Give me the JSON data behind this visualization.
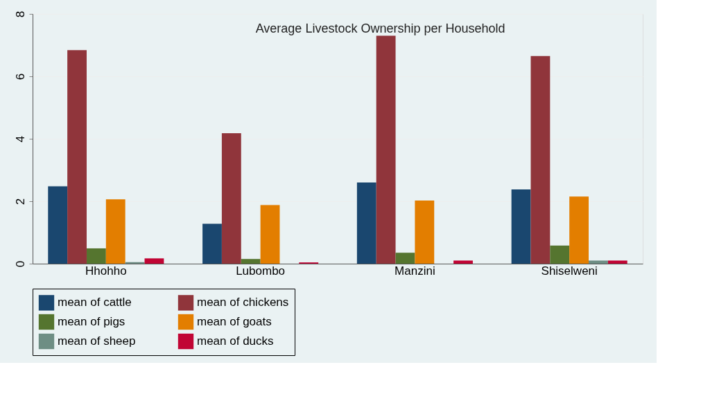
{
  "chart_data": {
    "type": "bar",
    "title": "Average Livestock Ownership per Household",
    "categories": [
      "Hhohho",
      "Lubombo",
      "Manzini",
      "Shiselweni"
    ],
    "series": [
      {
        "name": "mean of cattle",
        "color": "#1a476f",
        "values": [
          2.48,
          1.28,
          2.6,
          2.38
        ]
      },
      {
        "name": "mean of chickens",
        "color": "#90353b",
        "values": [
          6.84,
          4.18,
          7.3,
          6.65
        ]
      },
      {
        "name": "mean of pigs",
        "color": "#55752f",
        "values": [
          0.49,
          0.15,
          0.35,
          0.58
        ]
      },
      {
        "name": "mean of goats",
        "color": "#e37e00",
        "values": [
          2.06,
          1.88,
          2.02,
          2.15
        ]
      },
      {
        "name": "mean of sheep",
        "color": "#6e8e84",
        "values": [
          0.05,
          null,
          null,
          0.1
        ]
      },
      {
        "name": "mean of ducks",
        "color": "#c10534",
        "values": [
          0.17,
          0.04,
          0.1,
          0.1
        ]
      }
    ],
    "ylim": [
      0,
      8
    ],
    "yticks": [
      0,
      2,
      4,
      6,
      8
    ],
    "grid": "y",
    "legend": "bottom"
  }
}
